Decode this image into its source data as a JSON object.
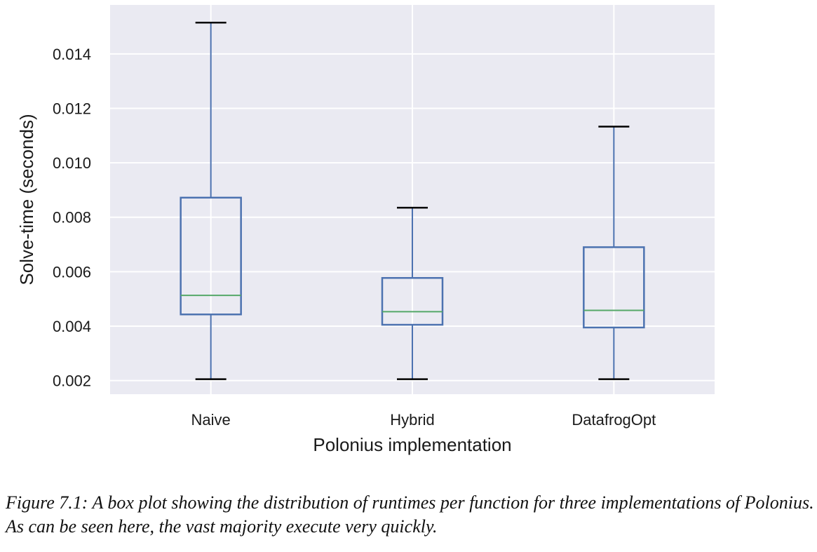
{
  "chart_data": {
    "type": "box",
    "xlabel": "Polonius implementation",
    "ylabel": "Solve-time (seconds)",
    "ylim": [
      0.0015,
      0.0158
    ],
    "yticks": [
      "0.002",
      "0.004",
      "0.006",
      "0.008",
      "0.010",
      "0.012",
      "0.014"
    ],
    "grid": true,
    "categories": [
      "Naive",
      "Hybrid",
      "DatafrogOpt"
    ],
    "boxes": [
      {
        "name": "Naive",
        "whisker_low": 0.00205,
        "q1": 0.00443,
        "median": 0.00513,
        "q3": 0.00872,
        "whisker_high": 0.01515
      },
      {
        "name": "Hybrid",
        "whisker_low": 0.00205,
        "q1": 0.00405,
        "median": 0.00453,
        "q3": 0.00577,
        "whisker_high": 0.00835
      },
      {
        "name": "DatafrogOpt",
        "whisker_low": 0.00205,
        "q1": 0.00395,
        "median": 0.00458,
        "q3": 0.0069,
        "whisker_high": 0.01133
      }
    ],
    "colors": {
      "background": "#eaeaf2",
      "grid": "#ffffff",
      "box": "#4c72b0",
      "median": "#55a868",
      "cap": "#000000"
    }
  },
  "caption": {
    "line1": "Figure 7.1: A box plot showing the distribution of runtimes per function for three implementations of Polonius.",
    "line2": "As can be seen here, the vast majority execute very quickly."
  }
}
